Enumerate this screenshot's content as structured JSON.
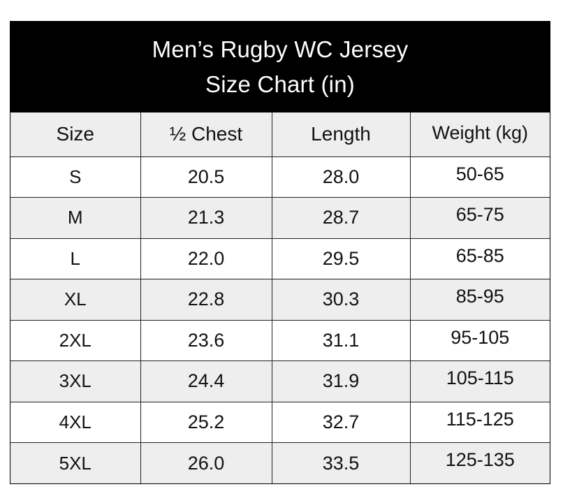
{
  "title": {
    "line1": "Men’s Rugby WC Jersey",
    "line2": "Size Chart (in)"
  },
  "columns": [
    "Size",
    "½ Chest",
    "Length",
    "Weight (kg)"
  ],
  "rows": [
    {
      "size": "S",
      "chest": "20.5",
      "length": "28.0",
      "weight": "50-65"
    },
    {
      "size": "M",
      "chest": "21.3",
      "length": "28.7",
      "weight": "65-75"
    },
    {
      "size": "L",
      "chest": "22.0",
      "length": "29.5",
      "weight": "65-85"
    },
    {
      "size": "XL",
      "chest": "22.8",
      "length": "30.3",
      "weight": "85-95"
    },
    {
      "size": "2XL",
      "chest": "23.6",
      "length": "31.1",
      "weight": "95-105"
    },
    {
      "size": "3XL",
      "chest": "24.4",
      "length": "31.9",
      "weight": "105-115"
    },
    {
      "size": "4XL",
      "chest": "25.2",
      "length": "32.7",
      "weight": "115-125"
    },
    {
      "size": "5XL",
      "chest": "26.0",
      "length": "33.5",
      "weight": "125-135"
    }
  ],
  "colors": {
    "header_background": "#000000",
    "header_text": "#ffffff",
    "alternate_row": "#eeeeee",
    "border": "#222222"
  }
}
